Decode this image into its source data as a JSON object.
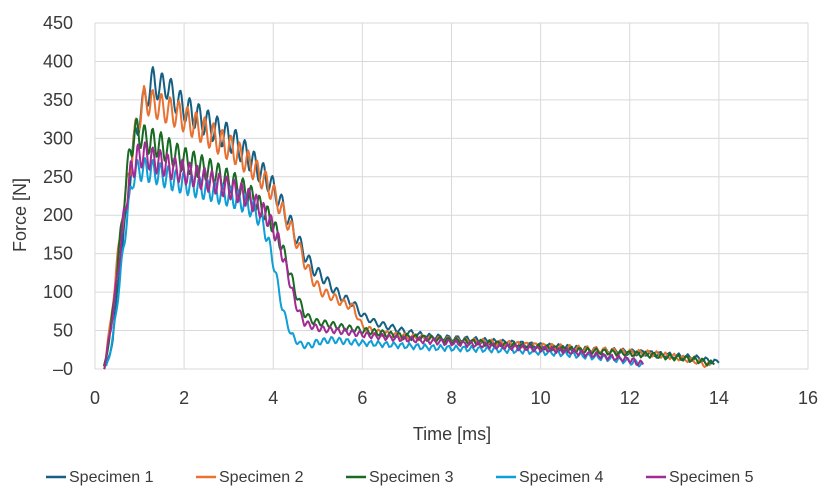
{
  "chart_data": {
    "type": "line",
    "xlabel": "Time [ms]",
    "ylabel": "Force [N]",
    "xlim": [
      0,
      16
    ],
    "ylim": [
      0,
      450
    ],
    "x_ticks": [
      "0",
      "2",
      "4",
      "6",
      "8",
      "10",
      "12",
      "14",
      "16"
    ],
    "y_ticks": [
      "–0",
      "50",
      "100",
      "150",
      "200",
      "250",
      "300",
      "350",
      "400",
      "450"
    ],
    "grid": "vertical and horizontal",
    "legend_position": "bottom",
    "series": [
      {
        "name": "Specimen 1",
        "color": "#156082",
        "points": [
          [
            0.25,
            0
          ],
          [
            0.4,
            40
          ],
          [
            0.55,
            130
          ],
          [
            0.7,
            200
          ],
          [
            0.8,
            260
          ],
          [
            0.9,
            300
          ],
          [
            1.0,
            330
          ],
          [
            1.15,
            355
          ],
          [
            1.3,
            375
          ],
          [
            1.45,
            365
          ],
          [
            1.6,
            370
          ],
          [
            1.75,
            355
          ],
          [
            1.9,
            345
          ],
          [
            2.1,
            335
          ],
          [
            2.3,
            328
          ],
          [
            2.5,
            320
          ],
          [
            2.7,
            312
          ],
          [
            2.9,
            305
          ],
          [
            3.1,
            297
          ],
          [
            3.3,
            285
          ],
          [
            3.5,
            272
          ],
          [
            3.7,
            258
          ],
          [
            3.9,
            245
          ],
          [
            4.1,
            225
          ],
          [
            4.3,
            200
          ],
          [
            4.5,
            175
          ],
          [
            4.7,
            150
          ],
          [
            4.9,
            130
          ],
          [
            5.1,
            120
          ],
          [
            5.3,
            108
          ],
          [
            5.5,
            95
          ],
          [
            5.8,
            85
          ],
          [
            6.0,
            70
          ],
          [
            6.3,
            60
          ],
          [
            6.6,
            55
          ],
          [
            7.0,
            48
          ],
          [
            7.5,
            42
          ],
          [
            8.0,
            40
          ],
          [
            8.5,
            38
          ],
          [
            9.0,
            35
          ],
          [
            9.5,
            33
          ],
          [
            10.0,
            30
          ],
          [
            10.5,
            28
          ],
          [
            11.0,
            26
          ],
          [
            11.5,
            24
          ],
          [
            12.0,
            22
          ],
          [
            12.5,
            20
          ],
          [
            13.0,
            17
          ],
          [
            13.5,
            14
          ],
          [
            14.0,
            8
          ]
        ]
      },
      {
        "name": "Specimen 2",
        "color": "#E97132",
        "points": [
          [
            0.2,
            0
          ],
          [
            0.35,
            60
          ],
          [
            0.5,
            140
          ],
          [
            0.65,
            210
          ],
          [
            0.8,
            270
          ],
          [
            0.95,
            320
          ],
          [
            1.1,
            350
          ],
          [
            1.3,
            345
          ],
          [
            1.5,
            340
          ],
          [
            1.7,
            335
          ],
          [
            1.9,
            330
          ],
          [
            2.1,
            322
          ],
          [
            2.3,
            315
          ],
          [
            2.5,
            308
          ],
          [
            2.7,
            300
          ],
          [
            2.9,
            292
          ],
          [
            3.1,
            285
          ],
          [
            3.3,
            275
          ],
          [
            3.5,
            265
          ],
          [
            3.7,
            252
          ],
          [
            3.9,
            238
          ],
          [
            4.1,
            218
          ],
          [
            4.3,
            195
          ],
          [
            4.5,
            170
          ],
          [
            4.7,
            140
          ],
          [
            4.9,
            115
          ],
          [
            5.1,
            100
          ],
          [
            5.3,
            95
          ],
          [
            5.5,
            88
          ],
          [
            5.8,
            80
          ],
          [
            6.0,
            55
          ],
          [
            6.3,
            48
          ],
          [
            6.6,
            45
          ],
          [
            7.0,
            42
          ],
          [
            7.5,
            40
          ],
          [
            8.0,
            38
          ],
          [
            8.5,
            36
          ],
          [
            9.0,
            34
          ],
          [
            9.5,
            32
          ],
          [
            10.0,
            30
          ],
          [
            10.5,
            28
          ],
          [
            11.0,
            26
          ],
          [
            11.5,
            24
          ],
          [
            12.0,
            22
          ],
          [
            12.5,
            20
          ],
          [
            13.0,
            16
          ],
          [
            13.5,
            10
          ],
          [
            13.8,
            4
          ]
        ]
      },
      {
        "name": "Specimen 3",
        "color": "#196B24",
        "points": [
          [
            0.2,
            0
          ],
          [
            0.35,
            50
          ],
          [
            0.5,
            130
          ],
          [
            0.65,
            220
          ],
          [
            0.8,
            290
          ],
          [
            0.95,
            310
          ],
          [
            1.1,
            300
          ],
          [
            1.3,
            295
          ],
          [
            1.5,
            290
          ],
          [
            1.7,
            282
          ],
          [
            1.9,
            275
          ],
          [
            2.1,
            270
          ],
          [
            2.3,
            265
          ],
          [
            2.5,
            260
          ],
          [
            2.7,
            255
          ],
          [
            2.9,
            248
          ],
          [
            3.1,
            242
          ],
          [
            3.3,
            235
          ],
          [
            3.5,
            225
          ],
          [
            3.7,
            212
          ],
          [
            3.9,
            198
          ],
          [
            4.1,
            175
          ],
          [
            4.3,
            140
          ],
          [
            4.5,
            100
          ],
          [
            4.7,
            72
          ],
          [
            4.9,
            62
          ],
          [
            5.1,
            60
          ],
          [
            5.3,
            58
          ],
          [
            5.5,
            55
          ],
          [
            5.8,
            52
          ],
          [
            6.0,
            50
          ],
          [
            6.3,
            48
          ],
          [
            6.6,
            45
          ],
          [
            7.0,
            42
          ],
          [
            7.5,
            40
          ],
          [
            8.0,
            37
          ],
          [
            8.5,
            35
          ],
          [
            9.0,
            33
          ],
          [
            9.5,
            30
          ],
          [
            10.0,
            28
          ],
          [
            10.5,
            26
          ],
          [
            11.0,
            24
          ],
          [
            11.5,
            22
          ],
          [
            12.0,
            20
          ],
          [
            12.5,
            18
          ],
          [
            13.0,
            15
          ],
          [
            13.5,
            12
          ],
          [
            13.9,
            6
          ]
        ]
      },
      {
        "name": "Specimen 4",
        "color": "#0F9ED5",
        "points": [
          [
            0.25,
            0
          ],
          [
            0.4,
            40
          ],
          [
            0.55,
            110
          ],
          [
            0.7,
            190
          ],
          [
            0.85,
            250
          ],
          [
            1.0,
            260
          ],
          [
            1.2,
            258
          ],
          [
            1.4,
            255
          ],
          [
            1.6,
            250
          ],
          [
            1.8,
            245
          ],
          [
            2.0,
            242
          ],
          [
            2.2,
            238
          ],
          [
            2.4,
            235
          ],
          [
            2.6,
            232
          ],
          [
            2.8,
            228
          ],
          [
            3.0,
            225
          ],
          [
            3.2,
            220
          ],
          [
            3.4,
            215
          ],
          [
            3.6,
            205
          ],
          [
            3.8,
            185
          ],
          [
            4.0,
            140
          ],
          [
            4.2,
            80
          ],
          [
            4.4,
            45
          ],
          [
            4.6,
            32
          ],
          [
            4.8,
            30
          ],
          [
            5.0,
            35
          ],
          [
            5.3,
            38
          ],
          [
            5.6,
            36
          ],
          [
            6.0,
            34
          ],
          [
            6.5,
            32
          ],
          [
            7.0,
            30
          ],
          [
            7.5,
            28
          ],
          [
            8.0,
            27
          ],
          [
            8.5,
            26
          ],
          [
            9.0,
            25
          ],
          [
            9.5,
            24
          ],
          [
            10.0,
            22
          ],
          [
            10.5,
            20
          ],
          [
            11.0,
            17
          ],
          [
            11.5,
            14
          ],
          [
            12.0,
            10
          ],
          [
            12.3,
            6
          ]
        ]
      },
      {
        "name": "Specimen 5",
        "color": "#A02B93",
        "points": [
          [
            0.2,
            0
          ],
          [
            0.35,
            50
          ],
          [
            0.5,
            120
          ],
          [
            0.65,
            200
          ],
          [
            0.8,
            255
          ],
          [
            0.95,
            275
          ],
          [
            1.1,
            280
          ],
          [
            1.3,
            272
          ],
          [
            1.5,
            268
          ],
          [
            1.7,
            262
          ],
          [
            1.9,
            258
          ],
          [
            2.1,
            254
          ],
          [
            2.3,
            250
          ],
          [
            2.5,
            246
          ],
          [
            2.7,
            242
          ],
          [
            2.9,
            238
          ],
          [
            3.1,
            233
          ],
          [
            3.3,
            228
          ],
          [
            3.5,
            220
          ],
          [
            3.7,
            210
          ],
          [
            3.9,
            195
          ],
          [
            4.1,
            170
          ],
          [
            4.3,
            130
          ],
          [
            4.5,
            85
          ],
          [
            4.7,
            60
          ],
          [
            4.9,
            55
          ],
          [
            5.1,
            52
          ],
          [
            5.4,
            50
          ],
          [
            5.7,
            48
          ],
          [
            6.0,
            45
          ],
          [
            6.4,
            42
          ],
          [
            6.8,
            40
          ],
          [
            7.2,
            38
          ],
          [
            7.6,
            36
          ],
          [
            8.0,
            34
          ],
          [
            8.5,
            32
          ],
          [
            9.0,
            30
          ],
          [
            9.5,
            28
          ],
          [
            10.0,
            26
          ],
          [
            10.5,
            24
          ],
          [
            11.0,
            20
          ],
          [
            11.5,
            16
          ],
          [
            12.0,
            12
          ],
          [
            12.3,
            6
          ]
        ]
      }
    ]
  }
}
